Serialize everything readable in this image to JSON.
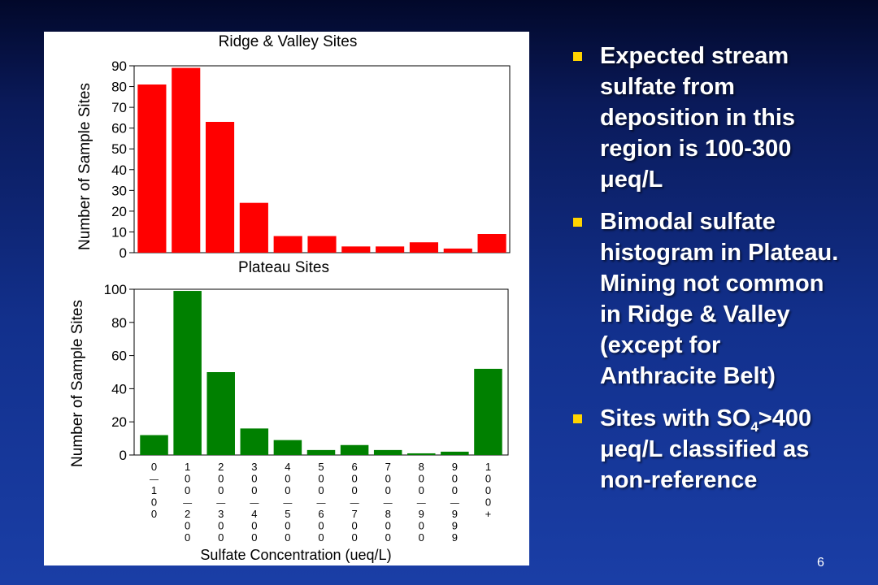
{
  "chart_data": [
    {
      "type": "bar",
      "title": "Ridge & Valley Sites",
      "ylabel": "Number of Sample Sites",
      "ylim": [
        0,
        90
      ],
      "yticks": [
        "0",
        "10",
        "20",
        "30",
        "40",
        "50",
        "60",
        "70",
        "80",
        "90"
      ],
      "values": [
        81,
        89,
        63,
        24,
        8,
        8,
        3,
        3,
        5,
        2,
        9
      ],
      "color": "#ff0000"
    },
    {
      "type": "bar",
      "title": "Plateau Sites",
      "xlabel": "Sulfate Concentration (ueq/L)",
      "ylabel": "Number of Sample Sites",
      "ylim": [
        0,
        100
      ],
      "yticks": [
        "0",
        "20",
        "40",
        "60",
        "80",
        "100"
      ],
      "categories": [
        "0-100",
        "100-200",
        "200-300",
        "300-400",
        "400-500",
        "500-600",
        "600-700",
        "700-800",
        "800-900",
        "900-999",
        "1000+"
      ],
      "values": [
        12,
        99,
        50,
        16,
        9,
        3,
        6,
        3,
        1,
        2,
        52
      ],
      "color": "#008000"
    }
  ],
  "bullets": {
    "b1": "Expected stream sulfate from deposition in this region is 100-300 μeq/L",
    "b2": "Bimodal sulfate histogram in Plateau.  Mining not common in Ridge & Valley (except for Anthracite Belt)",
    "b3_prefix": "Sites with SO",
    "b3_sub": "4",
    "b3_suffix": ">400 μeq/L classified as non-reference"
  },
  "slide_number": "6",
  "colors": {
    "bullet_marker": "#ffd400",
    "text": "#ffffff"
  }
}
